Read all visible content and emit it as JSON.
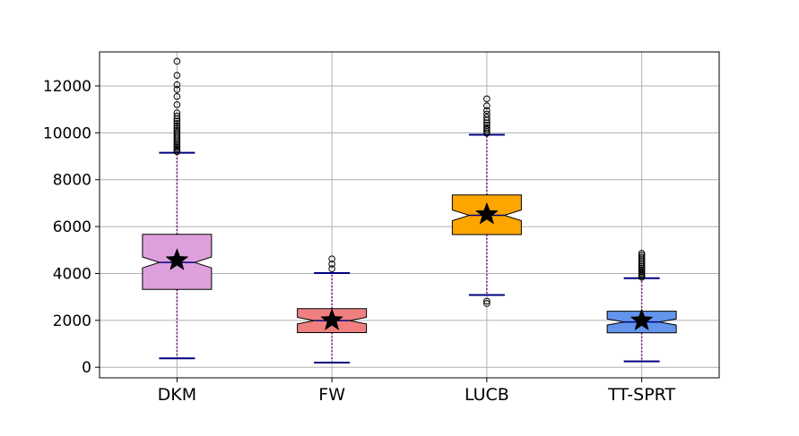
{
  "chart_data": {
    "type": "boxplot",
    "title": "",
    "xlabel": "",
    "ylabel": "",
    "ylim": [
      -450,
      13450
    ],
    "yticks": [
      0,
      2000,
      4000,
      6000,
      8000,
      10000,
      12000
    ],
    "grid": true,
    "notched": true,
    "categories": [
      "DKM",
      "FW",
      "LUCB",
      "TT-SPRT"
    ],
    "boxes": [
      {
        "label": "DKM",
        "color": "#DDA0DD",
        "q1": 3320,
        "median": 4470,
        "q3": 5670,
        "notch_low": 4240,
        "notch_high": 4700,
        "whisker_low": 380,
        "whisker_high": 9150,
        "mean": 4560,
        "outliers": [
          9200,
          9260,
          9330,
          9400,
          9470,
          9540,
          9620,
          9700,
          9780,
          9860,
          9940,
          10020,
          10110,
          10200,
          10300,
          10400,
          10500,
          10600,
          10720,
          10850,
          11200,
          11550,
          11850,
          12050,
          12450,
          13050
        ]
      },
      {
        "label": "FW",
        "color": "#F08080",
        "q1": 1480,
        "median": 1990,
        "q3": 2500,
        "notch_low": 1850,
        "notch_high": 2130,
        "whisker_low": 200,
        "whisker_high": 4020,
        "mean": 2000,
        "outliers": [
          4200,
          4400,
          4620
        ]
      },
      {
        "label": "LUCB",
        "color": "#FFA500",
        "q1": 5660,
        "median": 6480,
        "q3": 7350,
        "notch_low": 6250,
        "notch_high": 6710,
        "whisker_low": 3080,
        "whisker_high": 9920,
        "mean": 6520,
        "outliers": [
          2720,
          2820,
          9980,
          10060,
          10140,
          10220,
          10320,
          10420,
          10540,
          10660,
          10800,
          10950,
          11150,
          11450
        ]
      },
      {
        "label": "TT-SPRT",
        "color": "#6495ED",
        "q1": 1470,
        "median": 1930,
        "q3": 2390,
        "notch_low": 1800,
        "notch_high": 2060,
        "whisker_low": 250,
        "whisker_high": 3800,
        "mean": 1990,
        "outliers": [
          3840,
          3900,
          3960,
          4020,
          4090,
          4160,
          4230,
          4300,
          4380,
          4460,
          4540,
          4620,
          4700,
          4780,
          4860
        ]
      }
    ]
  }
}
